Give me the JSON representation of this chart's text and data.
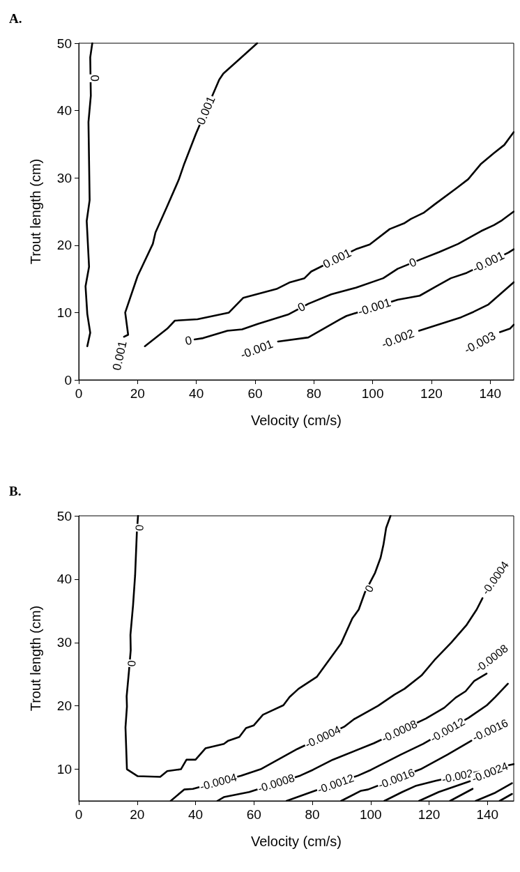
{
  "chart_data": [
    {
      "type": "line",
      "title": "A.",
      "xlabel": "Velocity (cm/s)",
      "ylabel": "Trout length (cm)",
      "xlim": [
        0,
        148
      ],
      "ylim": [
        0,
        50
      ],
      "xticks": [
        0,
        20,
        40,
        60,
        80,
        100,
        120,
        140
      ],
      "yticks": [
        0,
        10,
        20,
        30,
        40,
        50
      ],
      "grid": false,
      "marker": "none",
      "line_style": "solid",
      "series": [
        {
          "color": "#000000",
          "x": [
            4.6,
            3.9,
            4.1,
            3.3,
            3.7,
            2.7,
            3.5,
            2.3,
            2.9,
            3.9,
            2.9
          ],
          "values": [
            50,
            47.9,
            42.2,
            38.3,
            26.7,
            23.6,
            16.8,
            13.9,
            9.8,
            7.0,
            5.0
          ]
        },
        {
          "color": "#000000",
          "x": [
            60.7,
            55.1,
            49.2,
            47.8,
            39.9,
            35.9,
            34.0,
            30.1,
            26.1,
            25.2,
            20.0,
            15.8,
            16.8,
            15.4
          ],
          "values": [
            50,
            47.8,
            45.5,
            44.6,
            36.6,
            32.1,
            29.7,
            25.8,
            21.9,
            20.2,
            15.4,
            10.0,
            6.7,
            6.4
          ]
        },
        {
          "color": "#000000",
          "x": [
            22.5,
            30.1,
            32.7,
            40.4,
            51.1,
            56.0,
            67.3,
            71.9,
            76.8,
            79.1,
            94.3,
            99.0,
            105.8,
            110.9,
            113.0,
            117.3,
            121.2,
            128.6,
            132.5,
            136.9,
            141.3,
            144.8,
            148
          ],
          "values": [
            5.0,
            7.6,
            8.8,
            9.0,
            10.0,
            12.2,
            13.5,
            14.5,
            15.1,
            16.1,
            19.4,
            20.1,
            22.4,
            23.3,
            23.9,
            24.8,
            26.1,
            28.5,
            29.8,
            32.1,
            33.7,
            34.9,
            36.8
          ]
        },
        {
          "color": "#000000",
          "x": [
            39.4,
            42.3,
            50.6,
            55.6,
            60.9,
            71.2,
            78.1,
            85.9,
            94.3,
            103.6,
            108.5,
            116.3,
            122.7,
            129.1,
            136.9,
            141.3,
            144.0,
            148
          ],
          "values": [
            6.0,
            6.2,
            7.3,
            7.5,
            8.3,
            9.7,
            11.3,
            12.7,
            13.7,
            15.1,
            16.5,
            17.9,
            19.0,
            20.2,
            22.1,
            23.0,
            23.7,
            25.0
          ]
        },
        {
          "color": "#000000",
          "x": [
            67.8,
            78.1,
            88.9,
            91.1,
            108.5,
            116.0,
            121.7,
            126.6,
            132.0,
            146.2,
            148
          ],
          "values": [
            5.7,
            6.3,
            9.0,
            9.5,
            11.9,
            12.5,
            13.9,
            15.1,
            15.9,
            18.9,
            19.4
          ]
        },
        {
          "color": "#000000",
          "x": [
            115.8,
            130.1,
            134.3,
            139.4,
            148
          ],
          "values": [
            7.3,
            9.3,
            10.1,
            11.2,
            14.5
          ]
        },
        {
          "color": "#000000",
          "x": [
            143.3,
            146.7,
            148
          ],
          "values": [
            7.1,
            7.6,
            8.2
          ]
        }
      ],
      "annotations": [
        {
          "text": "0",
          "x": 5.4,
          "y": 44.8
        },
        {
          "text": "0.001",
          "x": 43.3,
          "y": 40.0
        },
        {
          "text": "0.001",
          "x": 15.4,
          "y": 6.4
        },
        {
          "text": "0.001",
          "x": 87.9,
          "y": 18.0
        },
        {
          "text": "0",
          "x": 39.4,
          "y": 6.0
        },
        {
          "text": "0",
          "x": 75.8,
          "y": 10.8
        },
        {
          "text": "0",
          "x": 113.7,
          "y": 17.4
        },
        {
          "text": "-0.001",
          "x": 67.8,
          "y": 5.7
        },
        {
          "text": "-0.001",
          "x": 100.6,
          "y": 10.8
        },
        {
          "text": "-0.001",
          "x": 139.4,
          "y": 17.5
        },
        {
          "text": "-0.002",
          "x": 115.8,
          "y": 7.3
        },
        {
          "text": "-0.003",
          "x": 143.3,
          "y": 7.1
        }
      ]
    },
    {
      "type": "line",
      "title": "B.",
      "xlabel": "Velocity (cm/s)",
      "ylabel": "Trout length (cm)",
      "xlim": [
        0,
        149
      ],
      "ylim": [
        5,
        50
      ],
      "xticks": [
        0,
        20,
        40,
        60,
        80,
        100,
        120,
        140
      ],
      "yticks": [
        10,
        20,
        30,
        40,
        50
      ],
      "grid": false,
      "marker": "none",
      "line_style": "solid",
      "series": [
        {
          "color": "#000000",
          "x": [
            20.3,
            19.9,
            19.3,
            18.6,
            17.7,
            17.8,
            17.2,
            16.4,
            16.5,
            16.0,
            16.5,
            20.2,
            27.9,
            30.3,
            35.0,
            36.9,
            40.0,
            43.4,
            49.7,
            51.2,
            55.0,
            57.3,
            59.9,
            63.1,
            70.1,
            72.2,
            75.3,
            81.6,
            89.8,
            93.7,
            95.9,
            98.1,
            101.5,
            103.4,
            104.4,
            105.3,
            106.8
          ],
          "values": [
            50,
            47.4,
            40.6,
            35.9,
            31.2,
            28.8,
            25.5,
            21.5,
            19.9,
            16.6,
            10.0,
            8.9,
            8.8,
            9.7,
            10.0,
            11.5,
            11.5,
            13.3,
            14.0,
            14.5,
            15.1,
            16.5,
            16.9,
            18.6,
            20.1,
            21.4,
            22.7,
            24.6,
            29.8,
            33.8,
            35.2,
            38.0,
            41.0,
            43.4,
            45.5,
            48.1,
            50
          ]
        },
        {
          "color": "#000000",
          "x": [
            31.5,
            36.1,
            39.1,
            55.7,
            62.3,
            74.9,
            90.9,
            94.3,
            102.5,
            108.2,
            111.6,
            117.4,
            121.8,
            127.6,
            132.9,
            136.3,
            138.3
          ],
          "values": [
            5,
            6.8,
            6.9,
            9.0,
            10.0,
            13.2,
            16.7,
            17.9,
            20.0,
            21.8,
            22.7,
            24.8,
            27.2,
            30.0,
            32.8,
            35.2,
            37.0
          ]
        },
        {
          "color": "#000000",
          "x": [
            47.5,
            49.7,
            58.4,
            75.9,
            80.2,
            87.0,
            101.1,
            118.9,
            125.2,
            129.1,
            132.5,
            135.4,
            139.7
          ],
          "values": [
            5,
            5.6,
            6.4,
            9.0,
            9.9,
            11.5,
            14.1,
            18.0,
            19.7,
            21.3,
            22.3,
            23.9,
            25.1
          ]
        },
        {
          "color": "#000000",
          "x": [
            71.2,
            79.7,
            95.7,
            100.1,
            110.3,
            118.0,
            133.5,
            139.8,
            142.7,
            147.0
          ],
          "values": [
            5,
            6.4,
            9.0,
            9.9,
            12.3,
            14.0,
            18.1,
            20.1,
            21.4,
            23.5
          ]
        },
        {
          "color": "#000000",
          "x": [
            89.9,
            96.7,
            99.1,
            117.1,
            126.3,
            134.5
          ],
          "values": [
            5,
            6.6,
            6.8,
            10.0,
            12.3,
            14.5
          ]
        },
        {
          "color": "#000000",
          "x": [
            104.7,
            110.8,
            115.6,
            122.4,
            149
          ],
          "values": [
            5,
            6.4,
            7.4,
            8.2,
            10.8
          ]
        },
        {
          "color": "#000000",
          "x": [
            116.6,
            123.3,
            134.0
          ],
          "values": [
            5,
            6.4,
            8.1
          ]
        },
        {
          "color": "#000000",
          "x": [
            127.2,
            134.9
          ],
          "values": [
            5,
            6.9
          ]
        },
        {
          "color": "#000000",
          "x": [
            136.0,
            142.7,
            148.4
          ],
          "values": [
            5,
            6.3,
            7.8
          ]
        },
        {
          "color": "#000000",
          "x": [
            144.2,
            148.4
          ],
          "values": [
            5,
            6.1
          ]
        }
      ],
      "annotations": [
        {
          "text": "0",
          "x": 20.8,
          "y": 48.1
        },
        {
          "text": "0",
          "x": 18.1,
          "y": 26.7
        },
        {
          "text": "0",
          "x": 99.5,
          "y": 38.5
        },
        {
          "text": "-0.0004",
          "x": 47.8,
          "y": 8.0
        },
        {
          "text": "-0.0004",
          "x": 83.6,
          "y": 15.1
        },
        {
          "text": "-0.0004",
          "x": 138.3,
          "y": 37.0
        },
        {
          "text": "-0.0008",
          "x": 67.6,
          "y": 7.8
        },
        {
          "text": "-0.0008",
          "x": 109.8,
          "y": 16.0
        },
        {
          "text": "-0.0008",
          "x": 139.7,
          "y": 25.1
        },
        {
          "text": "-0.0012",
          "x": 88.0,
          "y": 7.7
        },
        {
          "text": "-0.0012",
          "x": 126.3,
          "y": 16.2
        },
        {
          "text": "-0.0016",
          "x": 108.8,
          "y": 8.5
        },
        {
          "text": "-0.0016",
          "x": 134.5,
          "y": 14.5
        },
        {
          "text": "-0.002",
          "x": 129.7,
          "y": 8.9
        },
        {
          "text": "-0.0024",
          "x": 134.0,
          "y": 8.1
        }
      ]
    }
  ]
}
